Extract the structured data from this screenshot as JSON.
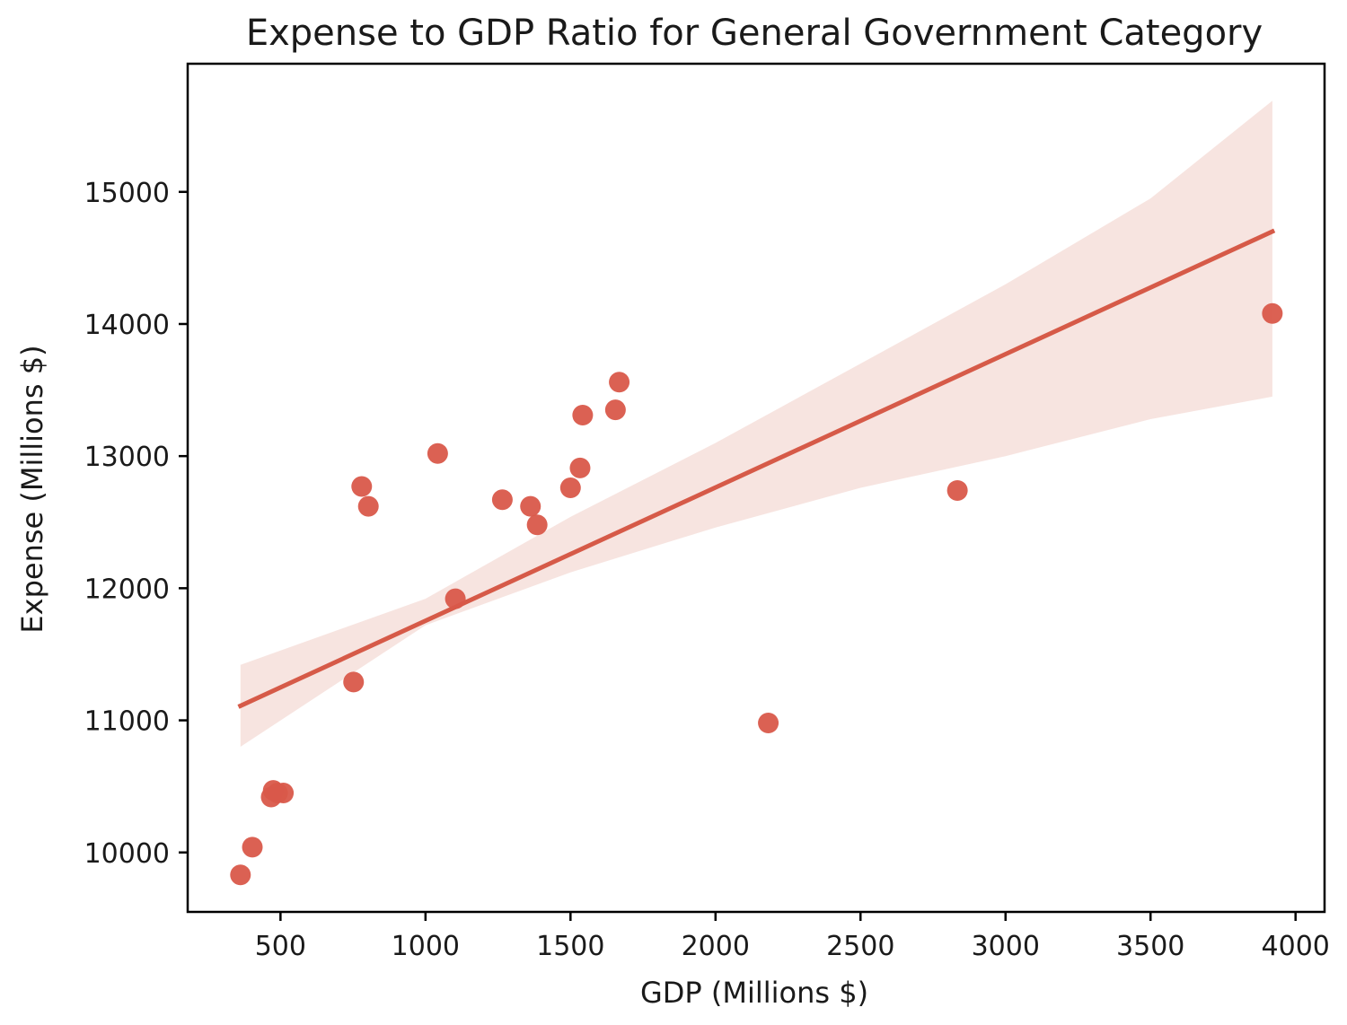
{
  "chart_data": {
    "type": "scatter",
    "title": "Expense to GDP Ratio for General Government Category",
    "xlabel": "GDP (Millions $)",
    "ylabel": "Expense (Millions $)",
    "xlim": [
      180,
      4100
    ],
    "ylim": [
      9550,
      15970
    ],
    "xticks": [
      500,
      1000,
      1500,
      2000,
      2500,
      3000,
      3500,
      4000
    ],
    "yticks": [
      10000,
      11000,
      12000,
      13000,
      14000,
      15000
    ],
    "grid": false,
    "colors": {
      "points": "#d9584a",
      "line": "#d65a48",
      "band": "#f6e1dd"
    },
    "points": [
      {
        "x": 362,
        "y": 9830
      },
      {
        "x": 403,
        "y": 10040
      },
      {
        "x": 468,
        "y": 10420
      },
      {
        "x": 475,
        "y": 10470
      },
      {
        "x": 490,
        "y": 10450
      },
      {
        "x": 510,
        "y": 10450
      },
      {
        "x": 752,
        "y": 11290
      },
      {
        "x": 780,
        "y": 12770
      },
      {
        "x": 803,
        "y": 12620
      },
      {
        "x": 1042,
        "y": 13020
      },
      {
        "x": 1103,
        "y": 11920
      },
      {
        "x": 1265,
        "y": 12670
      },
      {
        "x": 1362,
        "y": 12620
      },
      {
        "x": 1385,
        "y": 12480
      },
      {
        "x": 1500,
        "y": 12760
      },
      {
        "x": 1533,
        "y": 12910
      },
      {
        "x": 1542,
        "y": 13310
      },
      {
        "x": 1655,
        "y": 13350
      },
      {
        "x": 1668,
        "y": 13560
      },
      {
        "x": 2182,
        "y": 10980
      },
      {
        "x": 2834,
        "y": 12740
      },
      {
        "x": 3920,
        "y": 14080
      }
    ],
    "regression": {
      "x": [
        362,
        3920
      ],
      "y": [
        11110,
        14700
      ]
    },
    "confidence_band": {
      "x": [
        362,
        1000,
        1500,
        2000,
        2500,
        3000,
        3500,
        3920
      ],
      "upper": [
        11420,
        11920,
        12540,
        13100,
        13700,
        14300,
        14950,
        15690
      ],
      "lower": [
        10800,
        11720,
        12120,
        12460,
        12760,
        13000,
        13280,
        13450
      ]
    }
  }
}
